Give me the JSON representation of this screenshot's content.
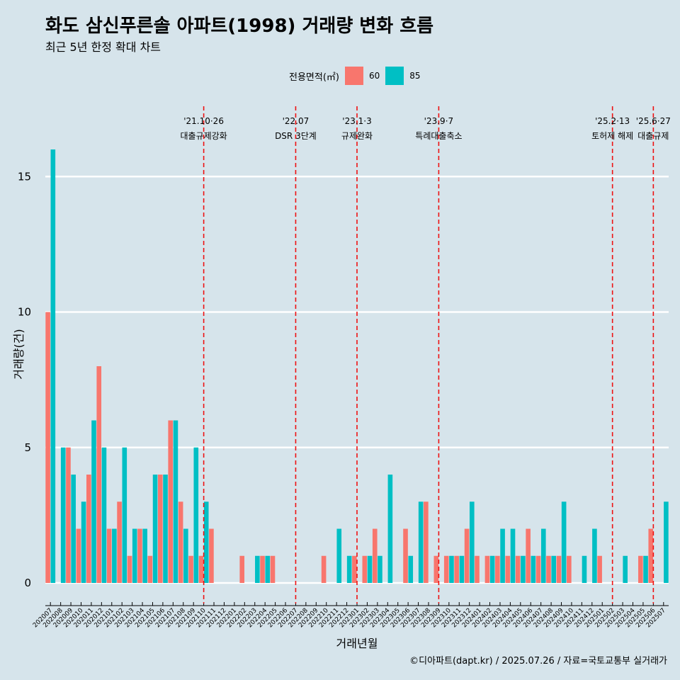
{
  "title": "화도 삼신푸른솔 아파트(1998) 거래량 변화 흐름",
  "subtitle": "최근 5년 한정 확대 차트",
  "legend": {
    "title": "전용면적(㎡)",
    "items": [
      {
        "label": "60",
        "color": "#f8766d"
      },
      {
        "label": "85",
        "color": "#00bfc4"
      }
    ]
  },
  "caption": "©디아파트(dapt.kr) / 2025.07.26 / 자료=국토교통부 실거래가",
  "chart_data": {
    "type": "bar",
    "xlabel": "거래년월",
    "ylabel": "거래량(건)",
    "ylim": [
      0,
      16
    ],
    "yticks": [
      0,
      5,
      10,
      15
    ],
    "grid": true,
    "legend_position": "top",
    "categories": [
      "202007",
      "202008",
      "202009",
      "202010",
      "202011",
      "202012",
      "202101",
      "202102",
      "202103",
      "202104",
      "202105",
      "202106",
      "202107",
      "202108",
      "202109",
      "202110",
      "202111",
      "202112",
      "202201",
      "202202",
      "202203",
      "202204",
      "202205",
      "202206",
      "202207",
      "202208",
      "202209",
      "202210",
      "202211",
      "202212",
      "202301",
      "202302",
      "202303",
      "202304",
      "202305",
      "202306",
      "202307",
      "202308",
      "202309",
      "202310",
      "202311",
      "202312",
      "202401",
      "202402",
      "202403",
      "202404",
      "202405",
      "202406",
      "202407",
      "202408",
      "202409",
      "202410",
      "202411",
      "202412",
      "202501",
      "202502",
      "202503",
      "202504",
      "202505",
      "202506",
      "202507"
    ],
    "series": [
      {
        "name": "60",
        "color": "#f8766d",
        "values": [
          10,
          0,
          5,
          2,
          4,
          8,
          2,
          3,
          1,
          2,
          1,
          4,
          6,
          3,
          1,
          1,
          2,
          0,
          0,
          1,
          0,
          1,
          1,
          0,
          0,
          0,
          0,
          1,
          0,
          0,
          1,
          1,
          2,
          0,
          0,
          2,
          0,
          3,
          1,
          1,
          1,
          2,
          1,
          1,
          1,
          1,
          1,
          2,
          1,
          1,
          1,
          1,
          0,
          0,
          1,
          0,
          0,
          0,
          1,
          2,
          0
        ]
      },
      {
        "name": "85",
        "color": "#00bfc4",
        "values": [
          16,
          5,
          4,
          3,
          6,
          5,
          2,
          5,
          2,
          2,
          4,
          4,
          6,
          2,
          5,
          3,
          0,
          0,
          0,
          0,
          1,
          1,
          0,
          0,
          0,
          0,
          0,
          0,
          2,
          1,
          0,
          1,
          1,
          4,
          0,
          1,
          3,
          0,
          0,
          1,
          1,
          3,
          0,
          1,
          2,
          2,
          1,
          1,
          2,
          1,
          3,
          0,
          1,
          2,
          0,
          0,
          1,
          0,
          1,
          0,
          3
        ]
      }
    ],
    "events": [
      {
        "category": "202110",
        "date": "'21.10·26",
        "label": "대출규제강화"
      },
      {
        "category": "202207",
        "date": "'22.07",
        "label": "DSR 3단계"
      },
      {
        "category": "202301",
        "date": "'23.1·3",
        "label": "규제완화"
      },
      {
        "category": "202309",
        "date": "'23.9·7",
        "label": "특례대출축소"
      },
      {
        "category": "202502",
        "date": "'25.2·13",
        "label": "토허제 해제"
      },
      {
        "category": "202506",
        "date": "'25.6·27",
        "label": "대출규제"
      }
    ]
  }
}
